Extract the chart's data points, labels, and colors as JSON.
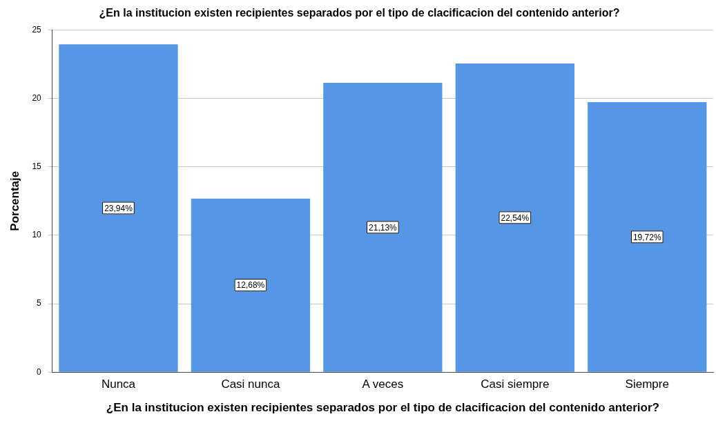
{
  "chart_data": {
    "type": "bar",
    "title": "¿En la institucion existen recipientes separados por el tipo de clacificacion del contenido anterior?",
    "xlabel": "¿En la institucion existen recipientes separados por el tipo de clacificacion del contenido anterior?",
    "ylabel": "Porcentaje",
    "categories": [
      "Nunca",
      "Casi nunca",
      "A veces",
      "Casi siempre",
      "Siempre"
    ],
    "values": [
      23.94,
      12.68,
      21.13,
      22.54,
      19.72
    ],
    "value_labels": [
      "23,94%",
      "12,68%",
      "21,13%",
      "22,54%",
      "19,72%"
    ],
    "color": "#5596e6",
    "ylim": [
      0,
      25
    ],
    "yticks": [
      0,
      5,
      10,
      15,
      20,
      25
    ],
    "grid": "y",
    "legend": false
  }
}
